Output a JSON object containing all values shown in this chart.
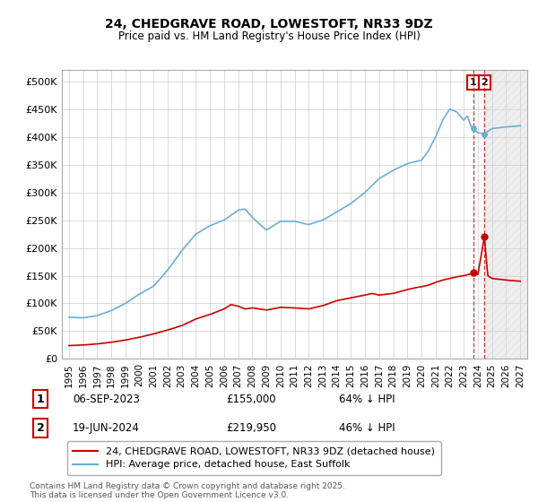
{
  "title": "24, CHEDGRAVE ROAD, LOWESTOFT, NR33 9DZ",
  "subtitle": "Price paid vs. HM Land Registry's House Price Index (HPI)",
  "ylabel_ticks": [
    "£0",
    "£50K",
    "£100K",
    "£150K",
    "£200K",
    "£250K",
    "£300K",
    "£350K",
    "£400K",
    "£450K",
    "£500K"
  ],
  "ytick_values": [
    0,
    50000,
    100000,
    150000,
    200000,
    250000,
    300000,
    350000,
    400000,
    450000,
    500000
  ],
  "ylim": [
    0,
    520000
  ],
  "hpi_color": "#6baed6",
  "price_color": "#cc0000",
  "dashed_color": "#cc0000",
  "background_color": "#ffffff",
  "plot_background": "#ffffff",
  "legend_label_red": "24, CHEDGRAVE ROAD, LOWESTOFT, NR33 9DZ (detached house)",
  "legend_label_blue": "HPI: Average price, detached house, East Suffolk",
  "transaction1_label": "1",
  "transaction1_date": "06-SEP-2023",
  "transaction1_price": "£155,000",
  "transaction1_pct": "64% ↓ HPI",
  "transaction2_label": "2",
  "transaction2_date": "19-JUN-2024",
  "transaction2_price": "£219,950",
  "transaction2_pct": "46% ↓ HPI",
  "footer": "Contains HM Land Registry data © Crown copyright and database right 2025.\nThis data is licensed under the Open Government Licence v3.0.",
  "point1_x": 2023.67,
  "point1_y": 155000,
  "point2_x": 2024.46,
  "point2_y": 219950,
  "shade_start_x": 2024.5,
  "xlim_left": 1994.5,
  "xlim_right": 2027.5
}
